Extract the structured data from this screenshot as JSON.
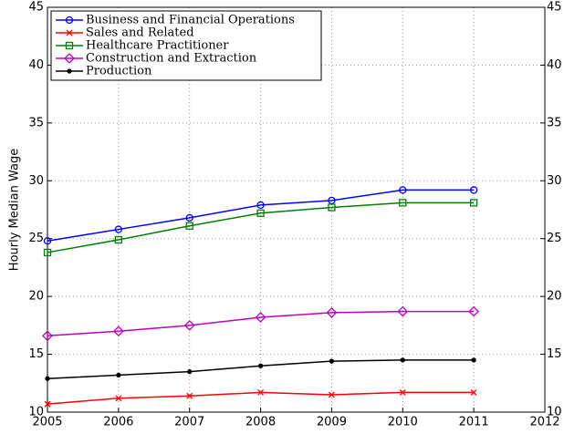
{
  "chart_data": {
    "type": "line",
    "y_label": "Hourly Median Wage",
    "x": [
      2005,
      2006,
      2007,
      2008,
      2009,
      2010,
      2011
    ],
    "xlim": [
      2005,
      2012
    ],
    "xticks": [
      2005,
      2006,
      2007,
      2008,
      2009,
      2010,
      2011,
      2012
    ],
    "ylim": [
      10,
      45
    ],
    "yticks": [
      10,
      15,
      20,
      25,
      30,
      35,
      40,
      45
    ],
    "y2lim": [
      10,
      45
    ],
    "y2ticks": [
      10,
      15,
      20,
      25,
      30,
      35,
      40,
      45
    ],
    "grid": true,
    "legend": "upper left",
    "series": [
      {
        "name": "Business and Financial Operations",
        "color": "#0000ff",
        "marker": "circle",
        "values": [
          24.8,
          25.8,
          26.8,
          27.9,
          28.3,
          29.2,
          29.2
        ]
      },
      {
        "name": "Sales and Related",
        "color": "#ff0000",
        "marker": "x",
        "values": [
          10.7,
          11.2,
          11.4,
          11.7,
          11.5,
          11.7,
          11.7
        ]
      },
      {
        "name": "Healthcare Practitioner",
        "color": "#008000",
        "marker": "square",
        "values": [
          23.8,
          24.9,
          26.1,
          27.2,
          27.7,
          28.1,
          28.1
        ]
      },
      {
        "name": "Construction and Extraction",
        "color": "#c000c0",
        "marker": "diamond",
        "values": [
          16.6,
          17.0,
          17.5,
          18.2,
          18.6,
          18.7,
          18.7
        ]
      },
      {
        "name": "Production",
        "color": "#000000",
        "marker": "dot",
        "values": [
          12.9,
          13.2,
          13.5,
          14.0,
          14.4,
          14.5,
          14.5
        ]
      }
    ]
  }
}
